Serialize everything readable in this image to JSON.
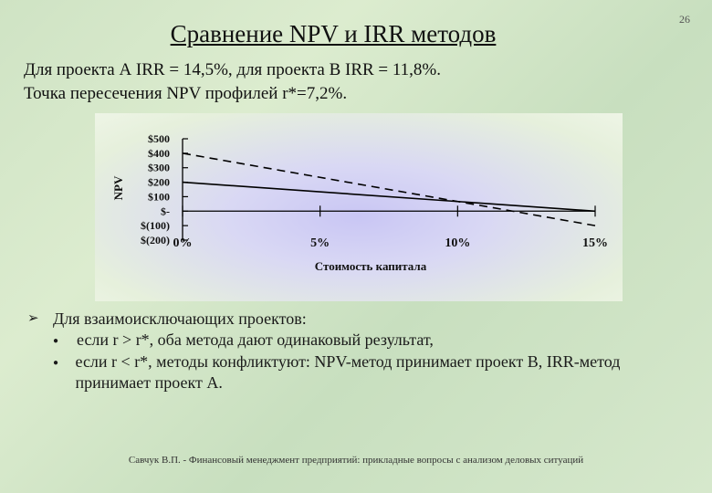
{
  "slide_number": "26",
  "title": "Сравнение NPV и IRR методов",
  "intro": [
    "Для проекта А IRR = 14,5%, для проекта В IRR = 11,8%.",
    "Точка пересечения NPV профилей r*=7,2%."
  ],
  "bullets": {
    "main": "Для взаимоисключающих проектов:",
    "items": [
      "если r > r*, оба метода дают одинаковый результат,",
      "если r < r*, методы конфликтуют: NPV-метод принимает проект В, IRR-метод принимает проект А."
    ]
  },
  "footer": "Савчук В.П. - Финансовый менеджмент предприятий: прикладные вопросы с анализом деловых ситуаций",
  "chart_data": {
    "type": "line",
    "xlabel": "Стоимость капитала",
    "ylabel": "NPV",
    "x_ticks": [
      "0%",
      "5%",
      "10%",
      "15%"
    ],
    "x_tick_values": [
      0,
      5,
      10,
      15
    ],
    "y_ticks": [
      "$500",
      "$400",
      "$300",
      "$200",
      "$100",
      "$-",
      "$(100)",
      "$(200)"
    ],
    "y_tick_values": [
      500,
      400,
      300,
      200,
      100,
      0,
      -100,
      -200
    ],
    "xlim": [
      0,
      15
    ],
    "ylim": [
      -200,
      500
    ],
    "series": [
      {
        "style": "solid",
        "x": [
          0,
          15
        ],
        "y": [
          200,
          0
        ]
      },
      {
        "style": "dashed",
        "x": [
          0,
          15
        ],
        "y": [
          400,
          -100
        ]
      }
    ],
    "grid": false
  }
}
